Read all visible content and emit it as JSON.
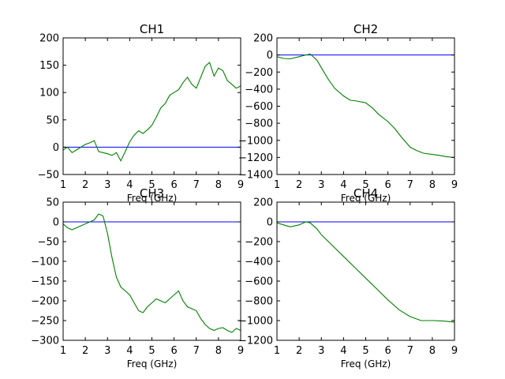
{
  "figure": {
    "background": "#ffffff",
    "line_colors": {
      "reference": "#0000ff",
      "measured": "#008000"
    }
  },
  "chart_data": [
    {
      "type": "line",
      "title": "CH1",
      "xlabel": "Freq (GHz)",
      "ylabel": "",
      "xlim": [
        1,
        9
      ],
      "ylim": [
        -50,
        200
      ],
      "xticks": [
        1,
        2,
        3,
        4,
        5,
        6,
        7,
        8,
        9
      ],
      "yticks": [
        -50,
        0,
        50,
        100,
        150,
        200
      ],
      "grid": false,
      "series": [
        {
          "color": "#0000ff",
          "x": [
            1,
            9
          ],
          "y": [
            0,
            0
          ]
        },
        {
          "color": "#008000",
          "x": [
            1.0,
            1.2,
            1.4,
            1.6,
            1.8,
            2.0,
            2.2,
            2.4,
            2.6,
            2.8,
            3.0,
            3.2,
            3.4,
            3.6,
            3.8,
            4.0,
            4.2,
            4.4,
            4.6,
            4.8,
            5.0,
            5.2,
            5.4,
            5.6,
            5.8,
            6.0,
            6.2,
            6.4,
            6.6,
            6.8,
            7.0,
            7.2,
            7.4,
            7.6,
            7.8,
            8.0,
            8.2,
            8.4,
            8.6,
            8.8,
            9.0
          ],
          "y": [
            -5,
            0,
            -10,
            -5,
            0,
            5,
            8,
            12,
            -8,
            -10,
            -12,
            -15,
            -10,
            -25,
            -8,
            10,
            22,
            30,
            25,
            32,
            40,
            55,
            72,
            80,
            95,
            100,
            105,
            118,
            128,
            115,
            108,
            128,
            148,
            155,
            130,
            145,
            140,
            122,
            115,
            108,
            112
          ]
        }
      ]
    },
    {
      "type": "line",
      "title": "CH2",
      "xlabel": "Freq (GHz)",
      "ylabel": "",
      "xlim": [
        1,
        9
      ],
      "ylim": [
        -1400,
        200
      ],
      "xticks": [
        1,
        2,
        3,
        4,
        5,
        6,
        7,
        8,
        9
      ],
      "yticks": [
        -1400,
        -1200,
        -1000,
        -800,
        -600,
        -400,
        -200,
        0,
        200
      ],
      "grid": false,
      "series": [
        {
          "color": "#0000ff",
          "x": [
            1,
            9
          ],
          "y": [
            0,
            0
          ]
        },
        {
          "color": "#008000",
          "x": [
            1.0,
            1.3,
            1.6,
            2.0,
            2.3,
            2.5,
            2.8,
            3.0,
            3.3,
            3.6,
            4.0,
            4.3,
            4.6,
            5.0,
            5.3,
            5.6,
            6.0,
            6.3,
            6.6,
            7.0,
            7.3,
            7.6,
            8.0,
            8.3,
            8.6,
            9.0
          ],
          "y": [
            -20,
            -40,
            -45,
            -20,
            0,
            10,
            -60,
            -150,
            -280,
            -390,
            -480,
            -530,
            -540,
            -560,
            -620,
            -700,
            -780,
            -860,
            -960,
            -1080,
            -1120,
            -1150,
            -1165,
            -1175,
            -1190,
            -1200
          ]
        }
      ]
    },
    {
      "type": "line",
      "title": "CH3",
      "xlabel": "Freq (GHz)",
      "ylabel": "",
      "xlim": [
        1,
        9
      ],
      "ylim": [
        -300,
        50
      ],
      "xticks": [
        1,
        2,
        3,
        4,
        5,
        6,
        7,
        8,
        9
      ],
      "yticks": [
        -300,
        -250,
        -200,
        -150,
        -100,
        -50,
        0,
        50
      ],
      "grid": false,
      "series": [
        {
          "color": "#0000ff",
          "x": [
            1,
            9
          ],
          "y": [
            0,
            0
          ]
        },
        {
          "color": "#008000",
          "x": [
            1.0,
            1.2,
            1.4,
            1.6,
            1.8,
            2.0,
            2.2,
            2.4,
            2.6,
            2.8,
            3.0,
            3.2,
            3.4,
            3.6,
            3.8,
            4.0,
            4.2,
            4.4,
            4.6,
            4.8,
            5.0,
            5.2,
            5.4,
            5.6,
            5.8,
            6.0,
            6.2,
            6.4,
            6.6,
            6.8,
            7.0,
            7.2,
            7.4,
            7.6,
            7.8,
            8.0,
            8.2,
            8.4,
            8.6,
            8.8,
            9.0
          ],
          "y": [
            -5,
            -15,
            -20,
            -15,
            -10,
            -5,
            0,
            5,
            20,
            15,
            -30,
            -90,
            -140,
            -165,
            -175,
            -185,
            -205,
            -225,
            -230,
            -215,
            -205,
            -195,
            -200,
            -205,
            -195,
            -185,
            -175,
            -200,
            -215,
            -220,
            -225,
            -245,
            -260,
            -270,
            -275,
            -270,
            -268,
            -275,
            -280,
            -270,
            -275
          ]
        }
      ]
    },
    {
      "type": "line",
      "title": "CH4",
      "xlabel": "Freq (GHz)",
      "ylabel": "",
      "xlim": [
        1,
        9
      ],
      "ylim": [
        -1200,
        200
      ],
      "xticks": [
        1,
        2,
        3,
        4,
        5,
        6,
        7,
        8,
        9
      ],
      "yticks": [
        -1200,
        -1000,
        -800,
        -600,
        -400,
        -200,
        0,
        200
      ],
      "grid": false,
      "series": [
        {
          "color": "#0000ff",
          "x": [
            1,
            9
          ],
          "y": [
            0,
            0
          ]
        },
        {
          "color": "#008000",
          "x": [
            1.0,
            1.3,
            1.6,
            2.0,
            2.3,
            2.5,
            2.8,
            3.0,
            3.5,
            4.0,
            4.5,
            5.0,
            5.5,
            6.0,
            6.5,
            7.0,
            7.5,
            8.0,
            8.5,
            9.0
          ],
          "y": [
            -10,
            -30,
            -50,
            -30,
            0,
            -10,
            -70,
            -130,
            -240,
            -350,
            -460,
            -570,
            -680,
            -790,
            -890,
            -960,
            -1000,
            -1000,
            -1005,
            -1015
          ]
        }
      ]
    }
  ]
}
